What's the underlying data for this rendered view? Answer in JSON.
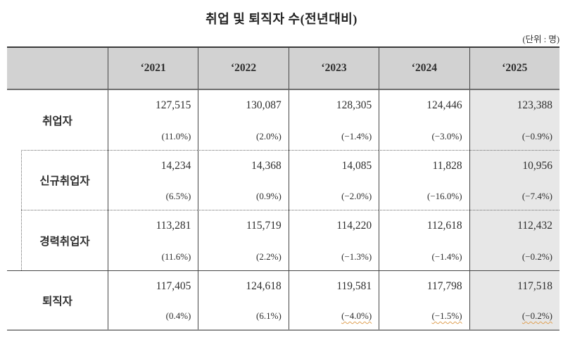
{
  "title": "취업 및 퇴직자 수(전년대비)",
  "unit_note": "(단위 : 명)",
  "table": {
    "col_headers": [
      "‘2021",
      "‘2022",
      "‘2023",
      "‘2024",
      "‘2025"
    ],
    "rows": [
      {
        "label": "취업자",
        "values": [
          "127,515",
          "130,087",
          "128,305",
          "124,446",
          "123,388"
        ],
        "pcts": [
          "(11.0%)",
          "(2.0%)",
          "(−1.4%)",
          "(−3.0%)",
          "(−0.9%)"
        ]
      },
      {
        "label": "신규취업자",
        "values": [
          "14,234",
          "14,368",
          "14,085",
          "11,828",
          "10,956"
        ],
        "pcts": [
          "(6.5%)",
          "(0.9%)",
          "(−2.0%)",
          "(−16.0%)",
          "(−7.4%)"
        ]
      },
      {
        "label": "경력취업자",
        "values": [
          "113,281",
          "115,719",
          "114,220",
          "112,618",
          "112,432"
        ],
        "pcts": [
          "(11.6%)",
          "(2.2%)",
          "(−1.3%)",
          "(−1.4%)",
          "(−0.2%)"
        ]
      },
      {
        "label": "퇴직자",
        "values": [
          "117,405",
          "124,618",
          "119,581",
          "117,798",
          "117,518"
        ],
        "pcts": [
          "(0.4%)",
          "(6.1%)",
          "(−4.0%)",
          "(−1.5%)",
          "(−0.2%)"
        ]
      }
    ]
  },
  "colors": {
    "header_bg": "#d2d2d2",
    "highlight_col_bg": "#e7e7e7",
    "text": "#2e2e2e",
    "spellcheck_underline": "#dfa053"
  }
}
